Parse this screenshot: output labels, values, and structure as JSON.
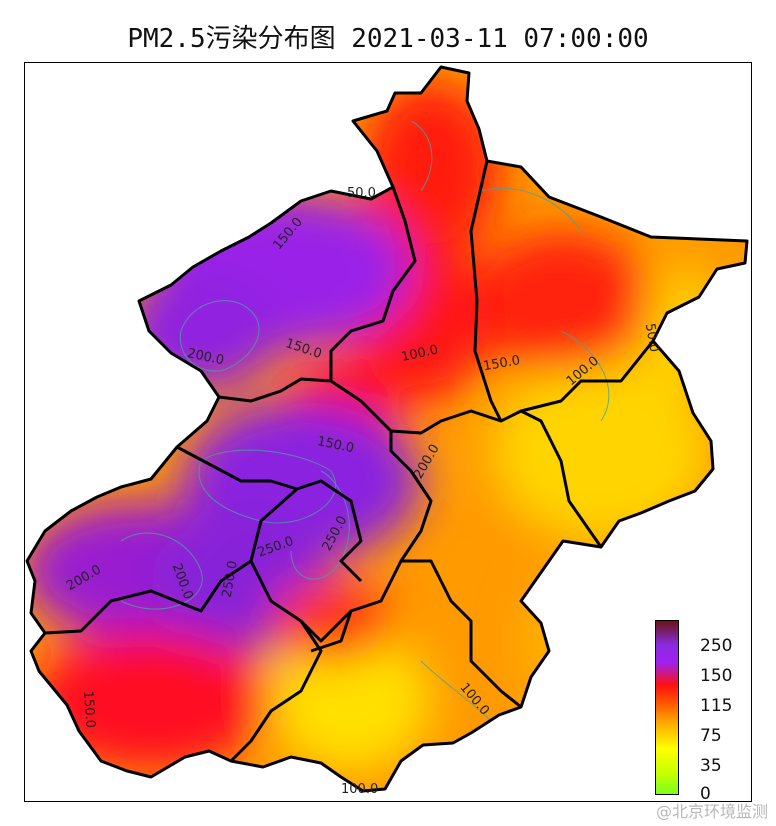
{
  "title": "PM2.5污染分布图 2021-03-11 07:00:00",
  "contour_labels": [
    "50.0",
    "150.0",
    "200.0",
    "150.0",
    "100.0",
    "150.0",
    "100.0",
    "50.0",
    "150.0",
    "200.0",
    "250.0",
    "250.0",
    "200.0",
    "200.0",
    "250.0",
    "150.0",
    "100.0",
    "100.0"
  ],
  "colorbar": {
    "ticks": [
      "250",
      "150",
      "115",
      "75",
      "35",
      "0"
    ],
    "colors": [
      "#7cff1f",
      "#ffff00",
      "#ffb000",
      "#ff1010",
      "#a020f0",
      "#6b1414"
    ]
  },
  "watermark": "@北京环境监测"
}
